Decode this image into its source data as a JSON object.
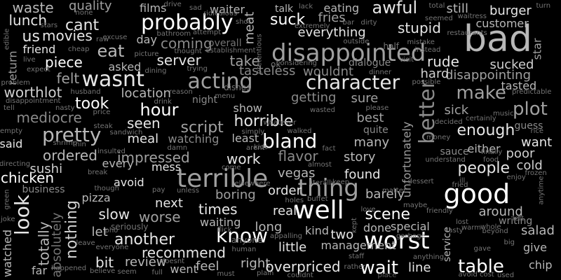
{
  "palette": {
    "background": "#000000",
    "tones": [
      "#ffffff",
      "#e6e6e6",
      "#d0d0d0",
      "#b8b8b8",
      "#a0a0a0",
      "#8a8a8a",
      "#747474",
      "#5e5e5e"
    ]
  },
  "words": [
    {
      "text": "bad",
      "tone": 3
    },
    {
      "text": "disappointed",
      "tone": 4
    },
    {
      "text": "terrible",
      "tone": 4
    },
    {
      "text": "good",
      "tone": 0
    },
    {
      "text": "worst",
      "tone": 0
    },
    {
      "text": "well",
      "tone": 0
    },
    {
      "text": "thing",
      "tone": 4
    },
    {
      "text": "acting",
      "tone": 4
    },
    {
      "text": "probably",
      "tone": 0
    },
    {
      "text": "wasnt",
      "tone": 1
    },
    {
      "text": "better",
      "tone": 5
    },
    {
      "text": "bland",
      "tone": 0
    },
    {
      "text": "pretty",
      "tone": 3
    },
    {
      "text": "character",
      "tone": 1
    },
    {
      "text": "look",
      "tone": 1
    },
    {
      "text": "know",
      "tone": 0
    },
    {
      "text": "wait",
      "tone": 0
    },
    {
      "text": "table",
      "tone": 0
    },
    {
      "text": "make",
      "tone": 4
    },
    {
      "text": "plot",
      "tone": 4
    },
    {
      "text": "hour",
      "tone": 0
    },
    {
      "text": "eat",
      "tone": 3
    },
    {
      "text": "awful",
      "tone": 1
    },
    {
      "text": "suck",
      "tone": 0
    },
    {
      "text": "script",
      "tone": 4
    },
    {
      "text": "horrible",
      "tone": 1
    },
    {
      "text": "scene",
      "tone": 0
    },
    {
      "text": "people",
      "tone": 1
    },
    {
      "text": "enough",
      "tone": 1
    },
    {
      "text": "cant",
      "tone": 1
    },
    {
      "text": "us",
      "tone": 1
    },
    {
      "text": "nothing",
      "tone": 2
    },
    {
      "text": "totally",
      "tone": 3
    },
    {
      "text": "absolutely",
      "tone": 6
    },
    {
      "text": "chicken",
      "tone": 0
    },
    {
      "text": "ordered",
      "tone": 3
    },
    {
      "text": "mediocre",
      "tone": 5
    },
    {
      "text": "worthlot",
      "tone": 2
    },
    {
      "text": "took",
      "tone": 0
    },
    {
      "text": "seen",
      "tone": 1
    },
    {
      "text": "felt",
      "tone": 4
    },
    {
      "text": "piece",
      "tone": 0
    },
    {
      "text": "lunch",
      "tone": 1
    },
    {
      "text": "waste",
      "tone": 3
    },
    {
      "text": "quality",
      "tone": 4
    },
    {
      "text": "movies",
      "tone": 1
    },
    {
      "text": "friend",
      "tone": 1
    },
    {
      "text": "server",
      "tone": 1
    },
    {
      "text": "coming",
      "tone": 5
    },
    {
      "text": "take",
      "tone": 4
    },
    {
      "text": "tasteless",
      "tone": 5
    },
    {
      "text": "wouldnt",
      "tone": 5
    },
    {
      "text": "stupid",
      "tone": 1
    },
    {
      "text": "everything",
      "tone": 1
    },
    {
      "text": "fries",
      "tone": 4
    },
    {
      "text": "eating",
      "tone": 3
    },
    {
      "text": "burger",
      "tone": 1
    },
    {
      "text": "still",
      "tone": 3
    },
    {
      "text": "customer",
      "tone": 3
    },
    {
      "text": "rude",
      "tone": 1
    },
    {
      "text": "sucked",
      "tone": 2
    },
    {
      "text": "disappointing",
      "tone": 4
    },
    {
      "text": "hard",
      "tone": 2
    },
    {
      "text": "tasted",
      "tone": 3
    },
    {
      "text": "sick",
      "tone": 4
    },
    {
      "text": "sure",
      "tone": 4
    },
    {
      "text": "best",
      "tone": 4
    },
    {
      "text": "getting",
      "tone": 5
    },
    {
      "text": "show",
      "tone": 3
    },
    {
      "text": "location",
      "tone": 3
    },
    {
      "text": "meal",
      "tone": 1
    },
    {
      "text": "watching",
      "tone": 5
    },
    {
      "text": "least",
      "tone": 3
    },
    {
      "text": "impressed",
      "tone": 4
    },
    {
      "text": "work",
      "tone": 1
    },
    {
      "text": "flavor",
      "tone": 5
    },
    {
      "text": "story",
      "tone": 3
    },
    {
      "text": "many",
      "tone": 3
    },
    {
      "text": "want",
      "tone": 1
    },
    {
      "text": "either",
      "tone": 3
    },
    {
      "text": "poor",
      "tone": 2
    },
    {
      "text": "cold",
      "tone": 2
    },
    {
      "text": "found",
      "tone": 1
    },
    {
      "text": "vegas",
      "tone": 3
    },
    {
      "text": "sushi",
      "tone": 2
    },
    {
      "text": "pizza",
      "tone": 3
    },
    {
      "text": "avoid",
      "tone": 1
    },
    {
      "text": "mess",
      "tone": 1
    },
    {
      "text": "every",
      "tone": 3
    },
    {
      "text": "boring",
      "tone": 4
    },
    {
      "text": "order",
      "tone": 1
    },
    {
      "text": "barely",
      "tone": 3
    },
    {
      "text": "times",
      "tone": 1
    },
    {
      "text": "next",
      "tone": 1
    },
    {
      "text": "real",
      "tone": 1
    },
    {
      "text": "slow",
      "tone": 1
    },
    {
      "text": "worse",
      "tone": 4
    },
    {
      "text": "another",
      "tone": 1
    },
    {
      "text": "recommend",
      "tone": 1
    },
    {
      "text": "review",
      "tone": 3
    },
    {
      "text": "bit",
      "tone": 1
    },
    {
      "text": "went",
      "tone": 3
    },
    {
      "text": "feel",
      "tone": 3
    },
    {
      "text": "right",
      "tone": 3
    },
    {
      "text": "overpriced",
      "tone": 1
    },
    {
      "text": "little",
      "tone": 1
    },
    {
      "text": "long",
      "tone": 3
    },
    {
      "text": "two",
      "tone": 1
    },
    {
      "text": "kind",
      "tone": 3
    },
    {
      "text": "management",
      "tone": 3
    },
    {
      "text": "done",
      "tone": 3
    },
    {
      "text": "around",
      "tone": 3
    },
    {
      "text": "salad",
      "tone": 3
    },
    {
      "text": "give",
      "tone": 3
    },
    {
      "text": "chip",
      "tone": 3
    },
    {
      "text": "waiting",
      "tone": 3
    },
    {
      "text": "let",
      "tone": 3
    },
    {
      "text": "watched",
      "tone": 3
    },
    {
      "text": "far",
      "tone": 3
    },
    {
      "text": "unfortunately",
      "tone": 4
    },
    {
      "text": "service",
      "tone": 3
    },
    {
      "text": "special",
      "tone": 3
    },
    {
      "text": "line",
      "tone": 1
    },
    {
      "text": "said",
      "tone": 1
    },
    {
      "text": "day",
      "tone": 3
    },
    {
      "text": "asked",
      "tone": 3
    },
    {
      "text": "films",
      "tone": 3
    },
    {
      "text": "waiter",
      "tone": 3
    },
    {
      "text": "talk",
      "tone": 3
    },
    {
      "text": "meat",
      "tone": 3
    },
    {
      "text": "return",
      "tone": 4
    },
    {
      "text": "star",
      "tone": 4
    },
    {
      "text": "business",
      "tone": 5
    },
    {
      "text": "night",
      "tone": 5
    },
    {
      "text": "writing",
      "tone": 5
    },
    {
      "text": "overall",
      "tone": 6
    },
    {
      "text": "dialogue",
      "tone": 5
    },
    {
      "text": "sauce",
      "tone": 5
    },
    {
      "text": "quite",
      "tone": 5
    },
    {
      "text": "guess",
      "tone": 5
    },
    {
      "text": "money",
      "tone": 6
    },
    {
      "text": "food",
      "tone": 6
    },
    {
      "text": "ok",
      "tone": 6
    },
    {
      "text": "place",
      "tone": 7
    },
    {
      "text": "half",
      "tone": 6
    },
    {
      "text": "nasty",
      "tone": 6
    },
    {
      "text": "dishes",
      "tone": 6
    },
    {
      "text": "reason",
      "tone": 6
    },
    {
      "text": "rice",
      "tone": 6
    },
    {
      "text": "friendly",
      "tone": 6
    },
    {
      "text": "buffet",
      "tone": 6
    },
    {
      "text": "elsewhere",
      "tone": 6
    },
    {
      "text": "anyone",
      "tone": 6
    },
    {
      "text": "enjoy",
      "tone": 6
    },
    {
      "text": "music",
      "tone": 6
    },
    {
      "text": "husband",
      "tone": 6
    },
    {
      "text": "price",
      "tone": 6
    },
    {
      "text": "whole",
      "tone": 6
    },
    {
      "text": "leave",
      "tone": 6
    },
    {
      "text": "plain",
      "tone": 6
    },
    {
      "text": "couldnt",
      "tone": 6
    },
    {
      "text": "staff",
      "tone": 6
    },
    {
      "text": "anything",
      "tone": 6
    },
    {
      "text": "joke",
      "tone": 6
    },
    {
      "text": "disappointment",
      "tone": 6
    },
    {
      "text": "cheap",
      "tone": 6
    },
    {
      "text": "none",
      "tone": 6
    },
    {
      "text": "sad",
      "tone": 6
    },
    {
      "text": "lack",
      "tone": 6
    },
    {
      "text": "total",
      "tone": 6
    },
    {
      "text": "waitress",
      "tone": 6
    },
    {
      "text": "restaurants",
      "tone": 6
    },
    {
      "text": "establishment",
      "tone": 6
    },
    {
      "text": "bathroom",
      "tone": 6
    },
    {
      "text": "thought",
      "tone": 6
    },
    {
      "text": "dining",
      "tone": 6
    },
    {
      "text": "trying",
      "tone": 6
    },
    {
      "text": "dinner",
      "tone": 6
    },
    {
      "text": "simply",
      "tone": 6
    },
    {
      "text": "walked",
      "tone": 6
    },
    {
      "text": "literally",
      "tone": 6
    },
    {
      "text": "almost",
      "tone": 6
    },
    {
      "text": "wasted",
      "tone": 6
    },
    {
      "text": "please",
      "tone": 6
    },
    {
      "text": "possible",
      "tone": 6
    },
    {
      "text": "predictable",
      "tone": 6
    },
    {
      "text": "frozen",
      "tone": 6
    },
    {
      "text": "anytime",
      "tone": 6
    },
    {
      "text": "beyond",
      "tone": 6
    },
    {
      "text": "used",
      "tone": 6
    },
    {
      "text": "avoid cost",
      "tone": 6
    },
    {
      "text": "tasty",
      "tone": 6
    },
    {
      "text": "maybe",
      "tone": 6
    },
    {
      "text": "love",
      "tone": 6
    },
    {
      "text": "seriously",
      "tone": 6
    },
    {
      "text": "everyone",
      "tone": 6
    },
    {
      "text": "happened",
      "tone": 6
    },
    {
      "text": "believe",
      "tone": 6
    },
    {
      "text": "seem",
      "tone": 6
    },
    {
      "text": "full",
      "tone": 6
    },
    {
      "text": "must",
      "tone": 6
    },
    {
      "text": "human",
      "tone": 6
    },
    {
      "text": "rather",
      "tone": 6
    },
    {
      "text": "steak",
      "tone": 6
    },
    {
      "text": "thin",
      "tone": 6
    },
    {
      "text": "shrimp",
      "tone": 6
    },
    {
      "text": "directing",
      "tone": 6
    },
    {
      "text": "empty",
      "tone": 6
    },
    {
      "text": "tell",
      "tone": 6
    },
    {
      "text": "expect",
      "tone": 6
    },
    {
      "text": "live",
      "tone": 6
    },
    {
      "text": "problem",
      "tone": 6
    },
    {
      "text": "excuse",
      "tone": 6
    },
    {
      "text": "picture",
      "tone": 6
    },
    {
      "text": "drive",
      "tone": 6
    },
    {
      "text": "ridiculous",
      "tone": 6
    },
    {
      "text": "shot",
      "tone": 6
    },
    {
      "text": "bar",
      "tone": 6
    },
    {
      "text": "dirty",
      "tone": 6
    },
    {
      "text": "outside",
      "tone": 6
    },
    {
      "text": "mistake",
      "tone": 6
    },
    {
      "text": "seemed",
      "tone": 6
    },
    {
      "text": "ill",
      "tone": 6
    },
    {
      "text": "fried",
      "tone": 6
    },
    {
      "text": "gave",
      "tone": 6
    },
    {
      "text": "big",
      "tone": 6
    },
    {
      "text": "left",
      "tone": 6
    },
    {
      "text": "lost",
      "tone": 6
    },
    {
      "text": "pay",
      "tone": 6
    },
    {
      "text": "unless",
      "tone": 6
    },
    {
      "text": "though",
      "tone": 6
    },
    {
      "text": "break",
      "tone": 6
    },
    {
      "text": "green",
      "tone": 6
    },
    {
      "text": "holes",
      "tone": 6
    },
    {
      "text": "appalling",
      "tone": 6
    },
    {
      "text": "garbage",
      "tone": 6
    },
    {
      "text": "kept",
      "tone": 6
    },
    {
      "text": "flick",
      "tone": 6
    },
    {
      "text": "pho",
      "tone": 6
    },
    {
      "text": "doesnt",
      "tone": 6
    },
    {
      "text": "keep",
      "tone": 6
    },
    {
      "text": "finally",
      "tone": 6
    },
    {
      "text": "understand",
      "tone": 6
    },
    {
      "text": "drink",
      "tone": 6
    },
    {
      "text": "damn",
      "tone": 6
    },
    {
      "text": "insulted",
      "tone": 6
    },
    {
      "text": "whatever",
      "tone": 6
    },
    {
      "text": "arent",
      "tone": 6
    },
    {
      "text": "come",
      "tone": 6
    },
    {
      "text": "kids",
      "tone": 6
    },
    {
      "text": "fact",
      "tone": 6
    },
    {
      "text": "attempt",
      "tone": 6
    },
    {
      "text": "pretentious",
      "tone": 6
    },
    {
      "text": "considering",
      "tone": 6
    },
    {
      "text": "extremely",
      "tone": 6
    },
    {
      "text": "visit",
      "tone": 6
    },
    {
      "text": "instead",
      "tone": 6
    },
    {
      "text": "warm",
      "tone": 6
    },
    {
      "text": "decided",
      "tone": 6
    },
    {
      "text": "certainly",
      "tone": 6
    },
    {
      "text": "turn",
      "tone": 6
    },
    {
      "text": "edible",
      "tone": 6
    },
    {
      "text": "sandwich",
      "tone": 6
    },
    {
      "text": "dessert",
      "tone": 6
    },
    {
      "text": "stars",
      "tone": 6
    },
    {
      "text": "raw",
      "tone": 6
    },
    {
      "text": "matter",
      "tone": 6
    },
    {
      "text": "menu",
      "tone": 6
    }
  ]
}
